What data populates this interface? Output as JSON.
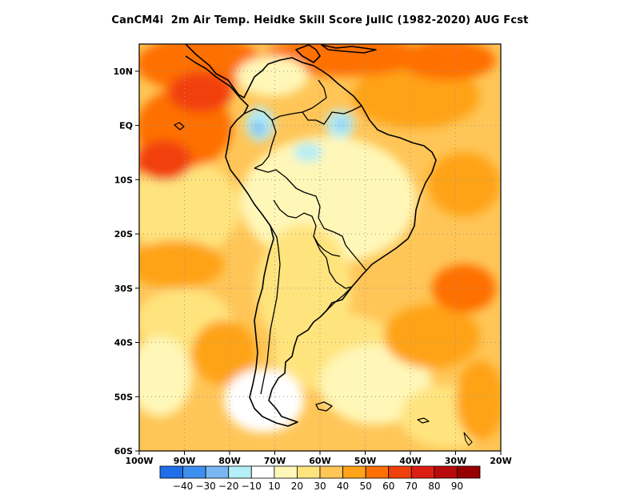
{
  "title": "CanCM4i  2m Air Temp. Heidke Skill Score JulIC (1982-2020) AUG Fcst",
  "map": {
    "region": "South America",
    "lon_range": [
      -100,
      -20
    ],
    "lat_range": [
      -60,
      15
    ],
    "grid_lines": "dotted",
    "x_ticks": [
      {
        "lon": -100,
        "label": "100W"
      },
      {
        "lon": -90,
        "label": "90W"
      },
      {
        "lon": -80,
        "label": "80W"
      },
      {
        "lon": -70,
        "label": "70W"
      },
      {
        "lon": -60,
        "label": "60W"
      },
      {
        "lon": -50,
        "label": "50W"
      },
      {
        "lon": -40,
        "label": "40W"
      },
      {
        "lon": -30,
        "label": "30W"
      },
      {
        "lon": -20,
        "label": "20W"
      }
    ],
    "y_ticks": [
      {
        "lat": 10,
        "label": "10N"
      },
      {
        "lat": 0,
        "label": "EQ"
      },
      {
        "lat": -10,
        "label": "10S"
      },
      {
        "lat": -20,
        "label": "20S"
      },
      {
        "lat": -30,
        "label": "30S"
      },
      {
        "lat": -40,
        "label": "40S"
      },
      {
        "lat": -50,
        "label": "50S"
      },
      {
        "lat": -60,
        "label": "60S"
      }
    ]
  },
  "colorbar": {
    "colors": [
      "#1f6fe8",
      "#3d8fef",
      "#79b6f2",
      "#b4eef6",
      "#ffffff",
      "#fff7b8",
      "#ffe47e",
      "#ffc557",
      "#ffa319",
      "#fe7005",
      "#f2400c",
      "#dc1e15",
      "#b90b0b",
      "#970000"
    ],
    "labels": [
      "-40",
      "-30",
      "-20",
      "-10",
      "10",
      "20",
      "30",
      "40",
      "50",
      "60",
      "70",
      "80",
      "90"
    ]
  },
  "chart_data": {
    "type": "heatmap",
    "title": "CanCM4i  2m Air Temp. Heidke Skill Score JulIC (1982-2020) AUG Fcst",
    "variable": "Heidke Skill Score",
    "xlabel": "",
    "ylabel": "",
    "x_range": [
      -100,
      -20
    ],
    "y_range": [
      -60,
      15
    ],
    "levels": [
      -40,
      -30,
      -20,
      -10,
      10,
      20,
      30,
      40,
      50,
      60,
      70,
      80,
      90
    ],
    "region_values": [
      {
        "region": "Eastern tropical Pacific",
        "lon": -90,
        "lat": 5,
        "value": 70
      },
      {
        "region": "Central America / Caribbean",
        "lon": -80,
        "lat": 12,
        "value": 70
      },
      {
        "region": "Northern Colombia",
        "lon": -75,
        "lat": 2,
        "value": -20
      },
      {
        "region": "Central Amazon",
        "lon": -65,
        "lat": -3,
        "value": -10
      },
      {
        "region": "Guianas",
        "lon": -55,
        "lat": 0,
        "value": -20
      },
      {
        "region": "Brazil interior",
        "lon": -55,
        "lat": -10,
        "value": 15
      },
      {
        "region": "Tropical Atlantic",
        "lon": -35,
        "lat": -5,
        "value": 40
      },
      {
        "region": "Subtropical South Atlantic",
        "lon": -30,
        "lat": -30,
        "value": 50
      },
      {
        "region": "Southeast Pacific",
        "lon": -90,
        "lat": -25,
        "value": 30
      },
      {
        "region": "Patagonia",
        "lon": -70,
        "lat": -48,
        "value": 5
      },
      {
        "region": "South Pacific off Chile",
        "lon": -85,
        "lat": -40,
        "value": 40
      }
    ]
  }
}
